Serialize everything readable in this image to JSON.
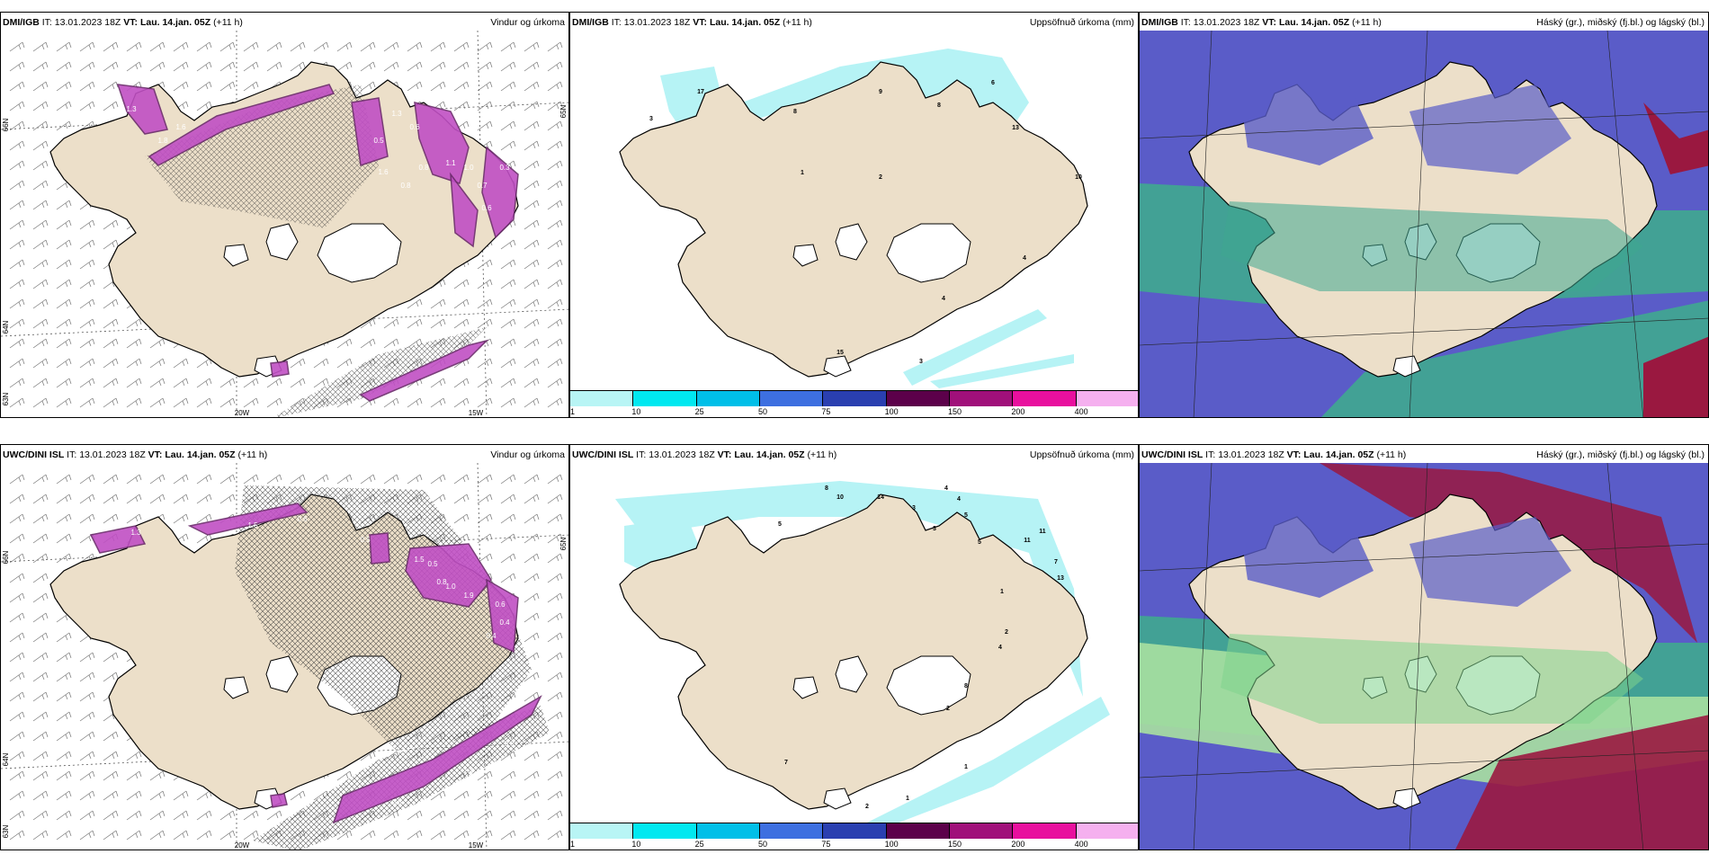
{
  "panels": [
    {
      "id": "p1",
      "model": "DMI/IGB",
      "it_label": "IT:",
      "it": "13.01.2023 18Z",
      "vt_label": "VT:",
      "vt": "Lau. 14.jan. 05Z",
      "lead": "(+11 h)",
      "title": "Vindur og úrkoma",
      "type": "wind"
    },
    {
      "id": "p2",
      "model": "DMI/IGB",
      "it_label": "IT:",
      "it": "13.01.2023 18Z",
      "vt_label": "VT:",
      "vt": "Lau. 14.jan. 05Z",
      "lead": "(+11 h)",
      "title": "Uppsöfnuð úrkoma (mm)",
      "type": "precip"
    },
    {
      "id": "p3",
      "model": "DMI/IGB",
      "it_label": "IT:",
      "it": "13.01.2023 18Z",
      "vt_label": "VT:",
      "vt": "Lau. 14.jan. 05Z",
      "lead": "(+11 h)",
      "title": "Háský (gr.), miðský (fj.bl.) og lágský (bl.)",
      "type": "cloud"
    },
    {
      "id": "p4",
      "model": "UWC/DINI ISL",
      "it_label": "IT:",
      "it": "13.01.2023 18Z",
      "vt_label": "VT:",
      "vt": "Lau. 14.jan. 05Z",
      "lead": "(+11 h)",
      "title": "Vindur og úrkoma",
      "type": "wind"
    },
    {
      "id": "p5",
      "model": "UWC/DINI ISL",
      "it_label": "IT:",
      "it": "13.01.2023 18Z",
      "vt_label": "VT:",
      "vt": "Lau. 14.jan. 05Z",
      "lead": "(+11 h)",
      "title": "Uppsöfnuð úrkoma (mm)",
      "type": "precip"
    },
    {
      "id": "p6",
      "model": "UWC/DINI ISL",
      "it_label": "IT:",
      "it": "13.01.2023 18Z",
      "vt_label": "VT:",
      "vt": "Lau. 14.jan. 05Z",
      "lead": "(+11 h)",
      "title": "Háský (gr.), miðský (fj.bl.) og lágský (bl.)",
      "type": "cloud"
    }
  ],
  "axis_labels": {
    "lat66": "66N",
    "lat64": "64N",
    "lat63": "63N",
    "lat65": "65N",
    "lon20": "20W",
    "lon15": "15W"
  },
  "colorbar": {
    "ticks": [
      "1",
      "10",
      "25",
      "50",
      "75",
      "100",
      "150",
      "200",
      "400"
    ],
    "colors": [
      "#b8f5f5",
      "#00e8f0",
      "#00bfe8",
      "#3d6fe0",
      "#2a3fb0",
      "#5c004a",
      "#a0107a",
      "#e8109e",
      "#f5b0ef"
    ]
  },
  "precip_labels_top": [
    "17",
    "3",
    "8",
    "9",
    "8",
    "6",
    "13",
    "1",
    "2",
    "10",
    "4",
    "4",
    "3",
    "15"
  ],
  "precip_labels_bottom": [
    "8",
    "10",
    "14",
    "3",
    "4",
    "4",
    "5",
    "3",
    "5",
    "1",
    "11",
    "11",
    "7",
    "13",
    "2",
    "4",
    "8",
    "2",
    "1",
    "7",
    "2",
    "1",
    "5"
  ],
  "wind_labels_top": [
    "1.3",
    "1.8",
    "1.6",
    "0.5",
    "0.6",
    "0.8",
    "1.1",
    "1.0",
    "0.7",
    "0.6",
    "1.6",
    "1.3",
    "0.8",
    "0.3",
    "0.8"
  ],
  "wind_labels_bottom": [
    "0.6",
    "1.5",
    "1.3",
    "0.5",
    "1.5",
    "0.5",
    "0.8",
    "1.0",
    "1.9",
    "0.6",
    "0.4",
    "0.4",
    "0.6",
    "1.4",
    "0.5"
  ],
  "colors": {
    "land": "#ecdfc9",
    "ice": "#ffffff",
    "magenta": "#c04fc4",
    "darkpurple": "#6b2a6b",
    "cyan": "#b6f3f5",
    "cloudBlue": "#5a5cc8",
    "cloudTeal": "#3fa88f",
    "cloudRed": "#9a1840",
    "cloudGreen": "#3ccf8c"
  }
}
